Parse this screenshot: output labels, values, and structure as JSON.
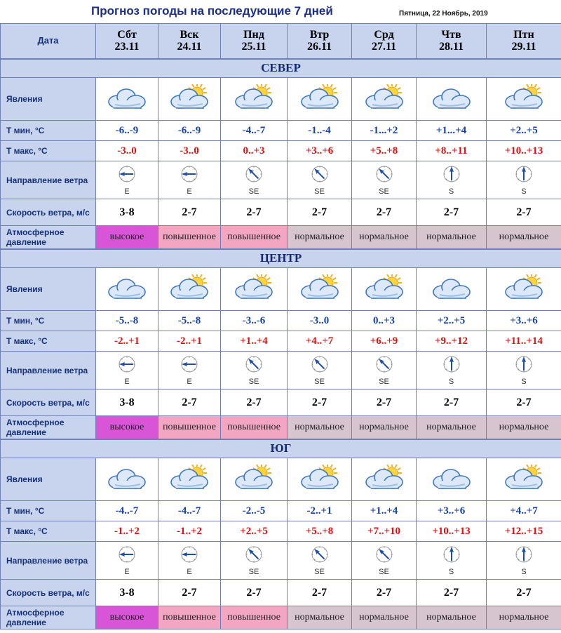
{
  "header": {
    "title": "Прогноз погоды на последующие 7 дней",
    "date": "Пятница, 22 Ноябрь, 2019"
  },
  "labels": {
    "date": "Дата",
    "phenomena": "Явления",
    "tmin": "Т мин, °C",
    "tmax": "Т макс, °C",
    "wind_dir": "Направление ветра",
    "wind_speed": "Скорость ветра, м/с",
    "pressure": "Атмосферное давление"
  },
  "days": [
    {
      "name": "Сбт",
      "date": "23.11"
    },
    {
      "name": "Вск",
      "date": "24.11"
    },
    {
      "name": "Пнд",
      "date": "25.11"
    },
    {
      "name": "Втр",
      "date": "26.11"
    },
    {
      "name": "Срд",
      "date": "27.11"
    },
    {
      "name": "Чтв",
      "date": "28.11"
    },
    {
      "name": "Птн",
      "date": "29.11"
    }
  ],
  "regions": [
    {
      "name": "СЕВЕР",
      "icons": [
        "cloudy-icon",
        "partly-cloudy-icon",
        "partly-cloudy-icon",
        "partly-cloudy-icon",
        "partly-cloudy-icon",
        "cloudy-icon",
        "partly-cloudy-icon"
      ],
      "tmin": [
        "-6..-9",
        "-6..-9",
        "-4..-7",
        "-1..-4",
        "-1...+2",
        "+1...+4",
        "+2..+5"
      ],
      "tmax": [
        "-3..0",
        "-3..0",
        "0..+3",
        "+3..+6",
        "+5..+8",
        "+8..+11",
        "+10..+13"
      ],
      "wind_dir": [
        "E",
        "E",
        "SE",
        "SE",
        "SE",
        "S",
        "S"
      ],
      "wind_speed": [
        "3-8",
        "2-7",
        "2-7",
        "2-7",
        "2-7",
        "2-7",
        "2-7"
      ],
      "pressure": [
        "высокое",
        "повышенное",
        "повышенное",
        "нормальное",
        "нормальное",
        "нормальное",
        "нормальное"
      ]
    },
    {
      "name": "ЦЕНТР",
      "icons": [
        "cloudy-icon",
        "partly-cloudy-icon",
        "partly-cloudy-icon",
        "partly-cloudy-icon",
        "partly-cloudy-icon",
        "cloudy-icon",
        "partly-cloudy-icon"
      ],
      "tmin": [
        "-5..-8",
        "-5..-8",
        "-3..-6",
        "-3..0",
        "0..+3",
        "+2..+5",
        "+3..+6"
      ],
      "tmax": [
        "-2..+1",
        "-2..+1",
        "+1..+4",
        "+4..+7",
        "+6..+9",
        "+9..+12",
        "+11..+14"
      ],
      "wind_dir": [
        "E",
        "E",
        "SE",
        "SE",
        "SE",
        "S",
        "S"
      ],
      "wind_speed": [
        "3-8",
        "2-7",
        "2-7",
        "2-7",
        "2-7",
        "2-7",
        "2-7"
      ],
      "pressure": [
        "высокое",
        "повышенное",
        "повышенное",
        "нормальное",
        "нормальное",
        "нормальное",
        "нормальное"
      ]
    },
    {
      "name": "ЮГ",
      "icons": [
        "cloudy-icon",
        "partly-cloudy-icon",
        "partly-cloudy-icon",
        "partly-cloudy-icon",
        "partly-cloudy-icon",
        "cloudy-icon",
        "partly-cloudy-icon"
      ],
      "tmin": [
        "-4..-7",
        "-4..-7",
        "-2..-5",
        "-2..+1",
        "+1..+4",
        "+3..+6",
        "+4..+7"
      ],
      "tmax": [
        "-1..+2",
        "-1..+2",
        "+2..+5",
        "+5..+8",
        "+7..+10",
        "+10..+13",
        "+12..+15"
      ],
      "wind_dir": [
        "E",
        "E",
        "SE",
        "SE",
        "SE",
        "S",
        "S"
      ],
      "wind_speed": [
        "3-8",
        "2-7",
        "2-7",
        "2-7",
        "2-7",
        "2-7",
        "2-7"
      ],
      "pressure": [
        "высокое",
        "повышенное",
        "повышенное",
        "нормальное",
        "нормальное",
        "нормальное",
        "нормальное"
      ]
    }
  ],
  "colors": {
    "header_bg": "#c8d4ee",
    "tmin": "#1540b0",
    "tmax": "#e01010",
    "pressure_high": "#d955d8",
    "pressure_elevated": "#f2a6c2",
    "pressure_normal": "#d6c4cf"
  }
}
